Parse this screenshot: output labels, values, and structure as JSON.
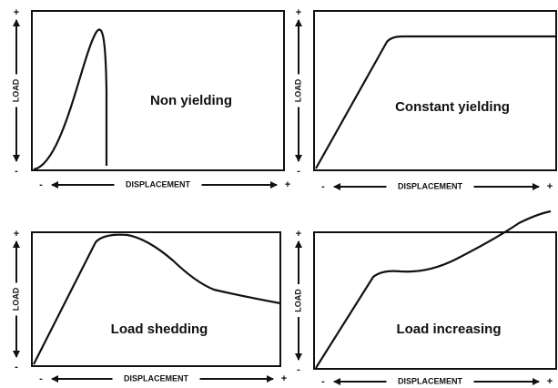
{
  "panels": [
    {
      "label": "Non yielding",
      "y_label": "LOAD",
      "x_label": "DISPLACEMENT"
    },
    {
      "label": "Constant yielding",
      "y_label": "LOAD",
      "x_label": "DISPLACEMENT"
    },
    {
      "label": "Load shedding",
      "y_label": "LOAD",
      "x_label": "DISPLACEMENT"
    },
    {
      "label": "Load increasing",
      "y_label": "LOAD",
      "x_label": "DISPLACEMENT"
    }
  ],
  "signs": {
    "plus": "+",
    "minus": "-"
  }
}
